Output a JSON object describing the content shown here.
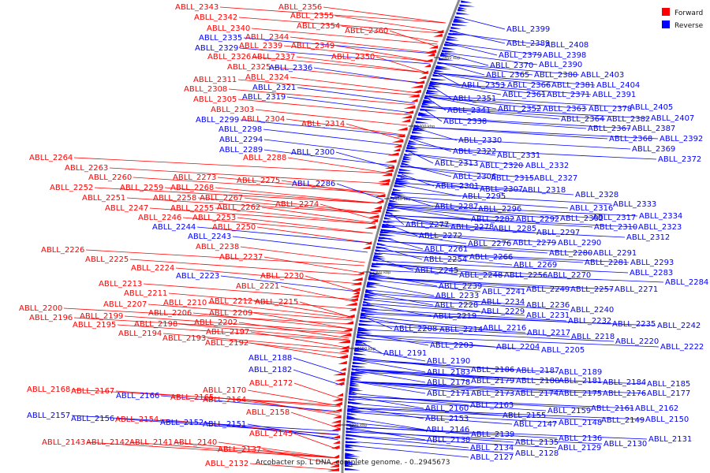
{
  "caption": "Arcobacter sp. L DNA, complete genome. - 0..2945673",
  "legend": [
    {
      "label": "Forward",
      "color": "#ff0000"
    },
    {
      "label": "Reverse",
      "color": "#0000ff"
    }
  ],
  "ticks": [
    "2450 kbp",
    "2400 kbp",
    "2350 kbp",
    "2300 kbp",
    "2250 kbp",
    "2200 kbp"
  ],
  "forward_labels": [
    "ABLL_2343",
    "ABLL_2356",
    "ABLL_2342",
    "ABLL_2355",
    "ABLL_2340",
    "ABLL_2354",
    "ABLL_2360",
    "ABLL_2344",
    "ABLL_2339",
    "ABLL_2349",
    "ABLL_2326",
    "ABLL_2337",
    "ABLL_2350",
    "ABLL_2325",
    "ABLL_2324",
    "ABLL_2311",
    "ABLL_2308",
    "ABLL_2305",
    "ABLL_2303",
    "ABLL_2304",
    "ABLL_2314",
    "ABLL_2288",
    "ABLL_2264",
    "ABLL_2263",
    "ABLL_2260",
    "ABLL_2273",
    "ABLL_2275",
    "ABLL_2252",
    "ABLL_2259",
    "ABLL_2268",
    "ABLL_2251",
    "ABLL_2258",
    "ABLL_2267",
    "ABLL_2247",
    "ABLL_2255",
    "ABLL_2262",
    "ABLL_2274",
    "ABLL_2246",
    "ABLL_2253",
    "ABLL_2250",
    "ABLL_2238",
    "ABLL_2226",
    "ABLL_2225",
    "ABLL_2237",
    "ABLL_2224",
    "ABLL_2230",
    "ABLL_2213",
    "ABLL_2221",
    "ABLL_2211",
    "ABLL_2212",
    "ABLL_2215",
    "ABLL_2207",
    "ABLL_2210",
    "ABLL_2200",
    "ABLL_2206",
    "ABLL_2209",
    "ABLL_2199",
    "ABLL_2196",
    "ABLL_2202",
    "ABLL_2195",
    "ABLL_2198",
    "ABLL_2197",
    "ABLL_2194",
    "ABLL_2193",
    "ABLL_2192",
    "ABLL_2172",
    "ABLL_2168",
    "ABLL_2167",
    "ABLL_2170",
    "ABLL_2165",
    "ABLL_2164",
    "ABLL_2154",
    "ABLL_2158",
    "ABLL_2145",
    "ABLL_2143",
    "ABLL_2142",
    "ABLL_2141",
    "ABLL_2140",
    "ABLL_2137",
    "ABLL_2132"
  ],
  "reverse_left_labels": [
    "ABLL_2335",
    "ABLL_2329",
    "ABLL_2336",
    "ABLL_2321",
    "ABLL_2319",
    "ABLL_2299",
    "ABLL_2298",
    "ABLL_2294",
    "ABLL_2289",
    "ABLL_2300",
    "ABLL_2286",
    "ABLL_2244",
    "ABLL_2243",
    "ABLL_2223",
    "ABLL_2188",
    "ABLL_2182",
    "ABLL_2166",
    "ABLL_2157",
    "ABLL_2156",
    "ABLL_2152",
    "ABLL_2151"
  ],
  "reverse_right_labels": [
    "ABLL_2399",
    "ABLL_2389",
    "ABLL_2408",
    "ABLL_2379",
    "ABLL_2398",
    "ABLL_2370",
    "ABLL_2390",
    "ABLL_2365",
    "ABLL_2380",
    "ABLL_2403",
    "ABLL_2353",
    "ABLL_2366",
    "ABLL_2381",
    "ABLL_2404",
    "ABLL_2361",
    "ABLL_2371",
    "ABLL_2391",
    "ABLL_2351",
    "ABLL_2352",
    "ABLL_2363",
    "ABLL_2378",
    "ABLL_2405",
    "ABLL_2341",
    "ABLL_2364",
    "ABLL_2382",
    "ABLL_2407",
    "ABLL_2338",
    "ABLL_2367",
    "ABLL_2387",
    "ABLL_2368",
    "ABLL_2392",
    "ABLL_2330",
    "ABLL_2369",
    "ABLL_2322",
    "ABLL_2372",
    "ABLL_2331",
    "ABLL_2313",
    "ABLL_2320",
    "ABLL_2332",
    "ABLL_2306",
    "ABLL_2315",
    "ABLL_2327",
    "ABLL_2301",
    "ABLL_2307",
    "ABLL_2318",
    "ABLL_2328",
    "ABLL_2295",
    "ABLL_2316",
    "ABLL_2333",
    "ABLL_2287",
    "ABLL_2296",
    "ABLL_2317",
    "ABLL_2334",
    "ABLL_2282",
    "ABLL_2292",
    "ABLL_2302",
    "ABLL_2310",
    "ABLL_2323",
    "ABLL_2277",
    "ABLL_2278",
    "ABLL_2285",
    "ABLL_2297",
    "ABLL_2312",
    "ABLL_2272",
    "ABLL_2276",
    "ABLL_2279",
    "ABLL_2290",
    "ABLL_2261",
    "ABLL_2280",
    "ABLL_2291",
    "ABLL_2254",
    "ABLL_2266",
    "ABLL_2281",
    "ABLL_2293",
    "ABLL_2269",
    "ABLL_2283",
    "ABLL_2245",
    "ABLL_2248",
    "ABLL_2256",
    "ABLL_2270",
    "ABLL_2284",
    "ABLL_2239",
    "ABLL_2257",
    "ABLL_2271",
    "ABLL_2241",
    "ABLL_2249",
    "ABLL_2233",
    "ABLL_2234",
    "ABLL_2236",
    "ABLL_2228",
    "ABLL_2240",
    "ABLL_2229",
    "ABLL_2219",
    "ABLL_2231",
    "ABLL_2232",
    "ABLL_2235",
    "ABLL_2242",
    "ABLL_2208",
    "ABLL_2214",
    "ABLL_2216",
    "ABLL_2217",
    "ABLL_2218",
    "ABLL_2203",
    "ABLL_2220",
    "ABLL_2204",
    "ABLL_2205",
    "ABLL_2222",
    "ABLL_2191",
    "ABLL_2190",
    "ABLL_2186",
    "ABLL_2187",
    "ABLL_2183",
    "ABLL_2189",
    "ABLL_2178",
    "ABLL_2179",
    "ABLL_2180",
    "ABLL_2181",
    "ABLL_2184",
    "ABLL_2185",
    "ABLL_2171",
    "ABLL_2173",
    "ABLL_2174",
    "ABLL_2175",
    "ABLL_2176",
    "ABLL_2177",
    "ABLL_2163",
    "ABLL_2160",
    "ABLL_2159",
    "ABLL_2161",
    "ABLL_2162",
    "ABLL_2155",
    "ABLL_2153",
    "ABLL_2147",
    "ABLL_2148",
    "ABLL_2149",
    "ABLL_2150",
    "ABLL_2146",
    "ABLL_2139",
    "ABLL_2138",
    "ABLL_2136",
    "ABLL_2131",
    "ABLL_2135",
    "ABLL_2130",
    "ABLL_2134",
    "ABLL_2129",
    "ABLL_2128",
    "ABLL_2127"
  ]
}
